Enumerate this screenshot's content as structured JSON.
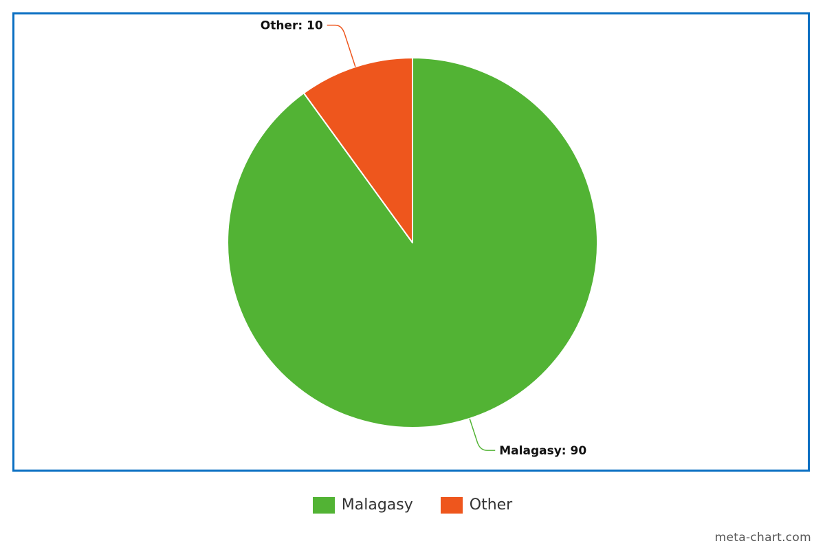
{
  "chart_data": {
    "type": "pie",
    "title": "",
    "slices": [
      {
        "name": "Malagasy",
        "value": 90,
        "label": "Malagasy: 90",
        "color": "#52b334"
      },
      {
        "name": "Other",
        "value": 10,
        "label": "Other: 10",
        "color": "#ee561d"
      }
    ],
    "legend_placement": "bottom-center",
    "start_angle": "12 o'clock",
    "direction": "clockwise"
  },
  "legend": {
    "items": [
      {
        "label": "Malagasy",
        "color": "#52b334"
      },
      {
        "label": "Other",
        "color": "#ee561d"
      }
    ]
  },
  "frame_color": "#0a6fc2",
  "watermark": "meta-chart.com"
}
